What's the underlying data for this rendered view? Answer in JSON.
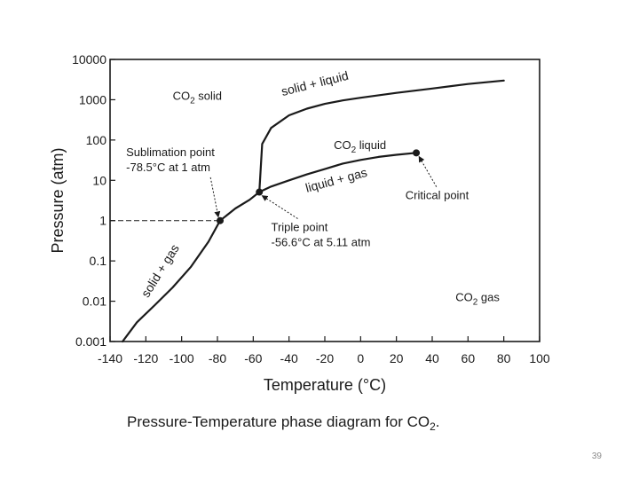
{
  "chart_data": {
    "type": "line",
    "title": "",
    "xlabel": "Temperature (°C)",
    "ylabel": "Pressure (atm)",
    "xlim": [
      -140,
      100
    ],
    "ylim": [
      0.001,
      10000
    ],
    "yscale": "log",
    "grid": false,
    "x_ticks": [
      "-140",
      "-120",
      "-100",
      "-80",
      "-60",
      "-40",
      "-20",
      "0",
      "20",
      "40",
      "60",
      "80",
      "100"
    ],
    "x_tick_values": [
      -140,
      -120,
      -100,
      -80,
      -60,
      -40,
      -20,
      0,
      20,
      40,
      60,
      80,
      100
    ],
    "y_ticks": [
      "0.001",
      "0.01",
      "0.1",
      "1",
      "10",
      "100",
      "1000",
      "10000"
    ],
    "y_tick_values": [
      0.001,
      0.01,
      0.1,
      1,
      10,
      100,
      1000,
      10000
    ],
    "series": [
      {
        "name": "solid + gas",
        "x": [
          -133,
          -125,
          -115,
          -105,
          -95,
          -85,
          -78.5,
          -70,
          -62,
          -56.6
        ],
        "y": [
          0.001,
          0.003,
          0.008,
          0.022,
          0.07,
          0.3,
          1,
          2,
          3.3,
          5.11
        ]
      },
      {
        "name": "liquid + gas",
        "x": [
          -56.6,
          -50,
          -40,
          -30,
          -20,
          -10,
          0,
          10,
          20,
          31.1
        ],
        "y": [
          5.11,
          7,
          10,
          14,
          19,
          26,
          32,
          38,
          43,
          48
        ]
      },
      {
        "name": "solid + liquid",
        "x": [
          -56.6,
          -55,
          -50,
          -40,
          -30,
          -20,
          -10,
          0,
          20,
          40,
          60,
          80
        ],
        "y": [
          5.11,
          80,
          200,
          410,
          600,
          790,
          960,
          1120,
          1480,
          1900,
          2450,
          3000
        ]
      }
    ],
    "dashed_reference": {
      "x": [
        -140,
        -78.5
      ],
      "y": [
        1,
        1
      ]
    },
    "points": [
      {
        "name": "Sublimation point",
        "x": -78.5,
        "y": 1
      },
      {
        "name": "Triple point",
        "x": -56.6,
        "y": 5.11
      },
      {
        "name": "Critical point",
        "x": 31.1,
        "y": 48
      }
    ],
    "region_labels": [
      {
        "pre": "CO",
        "sub": "2",
        "post": " solid",
        "x": -105,
        "y": 1000
      },
      {
        "pre": "CO",
        "sub": "2",
        "post": " liquid",
        "x": -15,
        "y": 60
      },
      {
        "pre": "CO",
        "sub": "2",
        "post": " gas",
        "x": 53,
        "y": 0.01
      }
    ],
    "curve_labels": [
      {
        "text": "solid + liquid",
        "x": -25,
        "y": 2000,
        "angle": -14
      },
      {
        "text": "liquid + gas",
        "x": -13,
        "y": 8,
        "angle": -15
      },
      {
        "text": "solid + gas",
        "x": -110,
        "y": 0.05,
        "angle": -58
      }
    ],
    "annotations": [
      {
        "lines": [
          "Sublimation point",
          "-78.5°C at 1 atm"
        ],
        "x": -131,
        "y": 40,
        "target": [
          -78.5,
          1
        ]
      },
      {
        "lines": [
          "Triple point",
          "-56.6°C at 5.11 atm"
        ],
        "x": -50,
        "y": 0.55,
        "target": [
          -56.6,
          5.11
        ]
      },
      {
        "lines": [
          "Critical point"
        ],
        "x": 25,
        "y": 3.4,
        "target": [
          31.1,
          48
        ]
      }
    ]
  },
  "caption": {
    "pre": "Pressure-Temperature phase diagram for CO",
    "sub": "2",
    "post": "."
  },
  "slide_number": "39"
}
